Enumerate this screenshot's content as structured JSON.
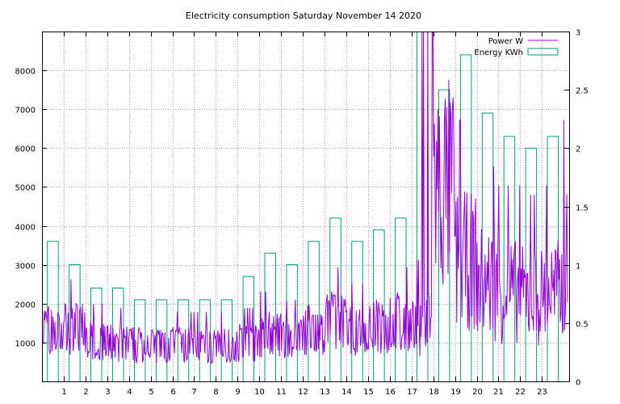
{
  "chart_data": {
    "type": "line",
    "title": "Electricity consumption Saturday November 14 2020",
    "x_ticks": [
      "1",
      "2",
      "3",
      "4",
      "5",
      "6",
      "7",
      "8",
      "9",
      "10",
      "11",
      "12",
      "13",
      "14",
      "15",
      "16",
      "17",
      "18",
      "19",
      "20",
      "21",
      "22",
      "23"
    ],
    "xlim": [
      0,
      24.25
    ],
    "y_left": {
      "ticks": [
        "1000",
        "2000",
        "3000",
        "4000",
        "5000",
        "6000",
        "7000",
        "8000"
      ],
      "range": [
        0,
        9000
      ]
    },
    "y_right": {
      "ticks": [
        "0",
        "0.5",
        "1",
        "1.5",
        "2",
        "2.5",
        "3"
      ],
      "range": [
        0,
        3
      ]
    },
    "grid": true,
    "legend_position": "top-right",
    "series": [
      {
        "name": "Power W",
        "kind": "line",
        "axis": "left",
        "color": "#9400d3",
        "approx_per_hour_mean": [
          1200,
          1250,
          950,
          900,
          850,
          850,
          850,
          850,
          850,
          900,
          1100,
          1000,
          1200,
          1400,
          1200,
          1300,
          1400,
          1300,
          4500,
          2800,
          2300,
          2100,
          2000,
          2100,
          2800
        ]
      },
      {
        "name": "Energy KWh",
        "kind": "steps",
        "axis": "right",
        "color": "#009e73",
        "hours": [
          0,
          1,
          2,
          3,
          4,
          5,
          6,
          7,
          8,
          9,
          10,
          11,
          12,
          13,
          14,
          15,
          16,
          17,
          18,
          19,
          20,
          21,
          22,
          23
        ],
        "values": [
          1.2,
          1.0,
          0.8,
          0.8,
          0.7,
          0.7,
          0.7,
          0.7,
          0.7,
          0.9,
          1.1,
          1.0,
          1.2,
          1.4,
          1.2,
          1.3,
          1.4,
          3.0,
          2.5,
          2.8,
          2.3,
          2.1,
          2.0,
          2.1
        ]
      }
    ]
  }
}
